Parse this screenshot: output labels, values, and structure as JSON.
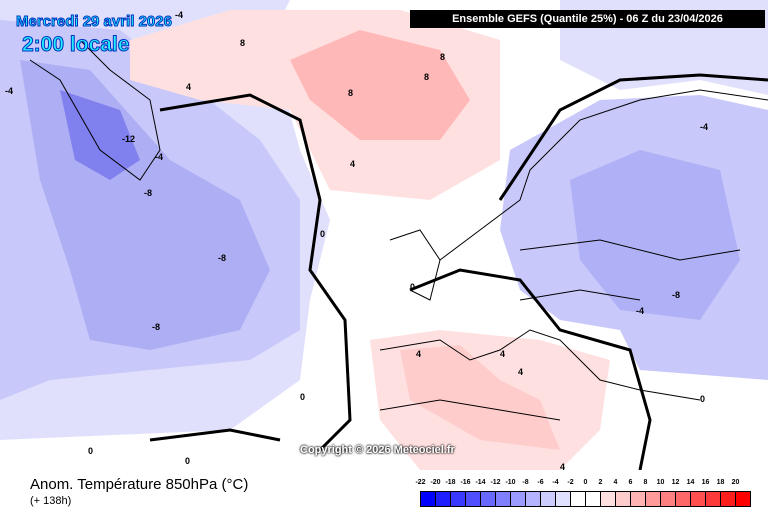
{
  "header": {
    "date": "Mercredi 29 avril 2026",
    "time": "2:00 locale",
    "ensemble": "Ensemble GEFS  (Quantile 25%) - 06 Z du 23/04/2026"
  },
  "map": {
    "copyright": "Copyright © 2026 Meteociel.fr",
    "contour_labels": [
      "-4",
      "-4",
      "-12",
      "-4",
      "-8",
      "-8",
      "-8",
      "8",
      "8",
      "8",
      "8",
      "4",
      "4",
      "0",
      "0",
      "0",
      "4",
      "4",
      "4",
      "4",
      "-4",
      "-8",
      "-4",
      "0",
      "0",
      "0"
    ]
  },
  "legend": {
    "title": "Anom. Température 850hPa (°C)",
    "subtitle": "(+ 138h)",
    "ticks": [
      "-22",
      "-20",
      "-18",
      "-16",
      "-14",
      "-12",
      "-10",
      "-8",
      "-6",
      "-4",
      "-2",
      "0",
      "2",
      "4",
      "6",
      "8",
      "10",
      "12",
      "14",
      "16",
      "18",
      "20"
    ],
    "colors": [
      "#0000ff",
      "#1e1eff",
      "#3a3aff",
      "#4f4fff",
      "#6868ff",
      "#8080ff",
      "#9a9aff",
      "#b3b3ff",
      "#ccccff",
      "#e0e0ff",
      "#ffffff",
      "#ffffff",
      "#ffe0e0",
      "#ffcccc",
      "#ffb3b3",
      "#ff9a9a",
      "#ff8080",
      "#ff6868",
      "#ff4f4f",
      "#ff3a3a",
      "#ff1e1e",
      "#ff0000"
    ]
  }
}
